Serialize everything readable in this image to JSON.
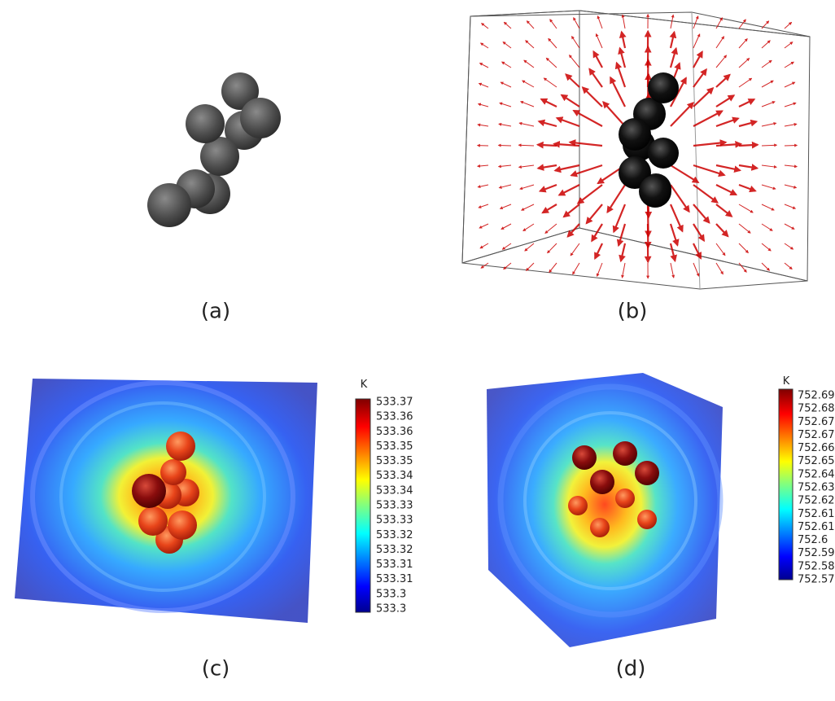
{
  "panels": [
    {
      "label": "(a)"
    },
    {
      "label": "(b)"
    },
    {
      "label": "(c)",
      "colorbar": {
        "unit": "K",
        "ticks": [
          "533.37",
          "533.36",
          "533.36",
          "533.35",
          "533.35",
          "533.34",
          "533.34",
          "533.33",
          "533.33",
          "533.32",
          "533.32",
          "533.31",
          "533.31",
          "533.3",
          "533.3"
        ]
      }
    },
    {
      "label": "(d)",
      "colorbar": {
        "unit": "K",
        "ticks": [
          "752.69",
          "752.68",
          "752.67",
          "752.67",
          "752.66",
          "752.65",
          "752.64",
          "752.63",
          "752.62",
          "752.61",
          "752.61",
          "752.6",
          "752.59",
          "752.58",
          "752.57"
        ]
      }
    }
  ]
}
